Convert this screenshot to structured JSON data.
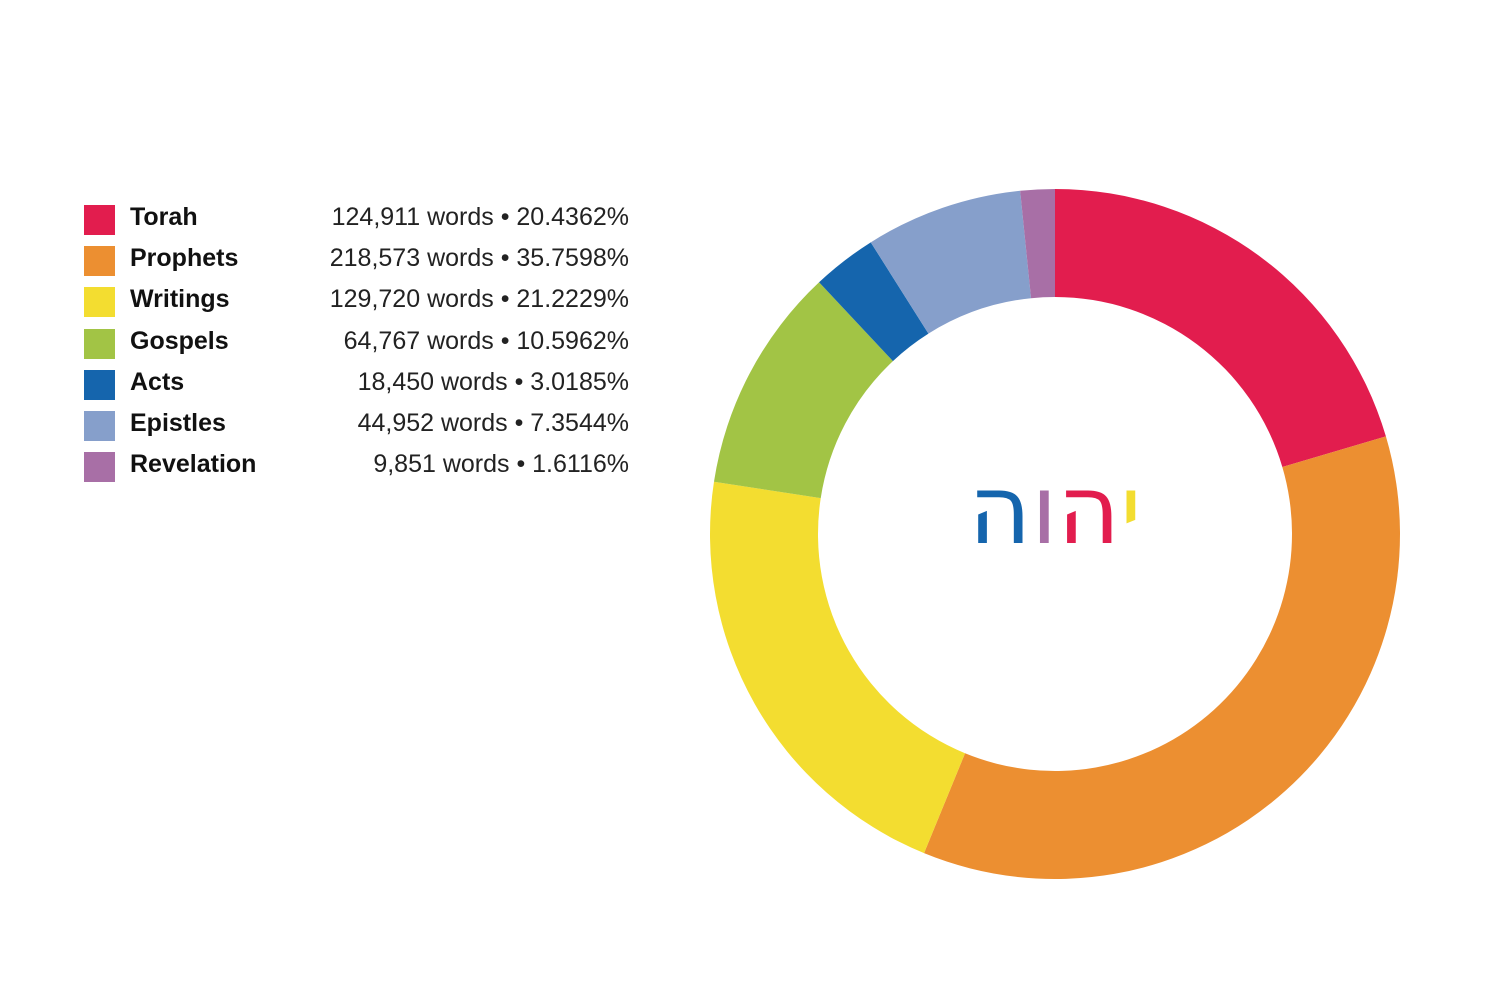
{
  "chart_data": {
    "type": "pie",
    "donut": true,
    "center_text": [
      "י",
      "ה",
      "ו",
      "ה"
    ],
    "center_text_colors": [
      "#f3dd30",
      "#e21d4e",
      "#a86fa6",
      "#1565ad"
    ],
    "series": [
      {
        "name": "Torah",
        "value": 124911,
        "percent_label": "20.4362%",
        "display": "124,911 words • 20.4362%",
        "color": "#e21d4e"
      },
      {
        "name": "Prophets",
        "value": 218573,
        "percent_label": "35.7598%",
        "display": "218,573 words • 35.7598%",
        "color": "#ec8f31"
      },
      {
        "name": "Writings",
        "value": 129720,
        "percent_label": "21.2229%",
        "display": "129,720 words • 21.2229%",
        "color": "#f3dd30"
      },
      {
        "name": "Gospels",
        "value": 64767,
        "percent_label": "10.5962%",
        "display": "64,767 words • 10.5962%",
        "color": "#a2c445"
      },
      {
        "name": "Acts",
        "value": 18450,
        "percent_label": "3.0185%",
        "display": "18,450 words • 3.0185%",
        "color": "#1565ad"
      },
      {
        "name": "Epistles",
        "value": 44952,
        "percent_label": "7.3544%",
        "display": "44,952 words • 7.3544%",
        "color": "#869fcb"
      },
      {
        "name": "Revelation",
        "value": 9851,
        "percent_label": "1.6116%",
        "display": "9,851 words • 1.6116%",
        "color": "#a86fa6"
      }
    ],
    "legend_position": "left"
  }
}
